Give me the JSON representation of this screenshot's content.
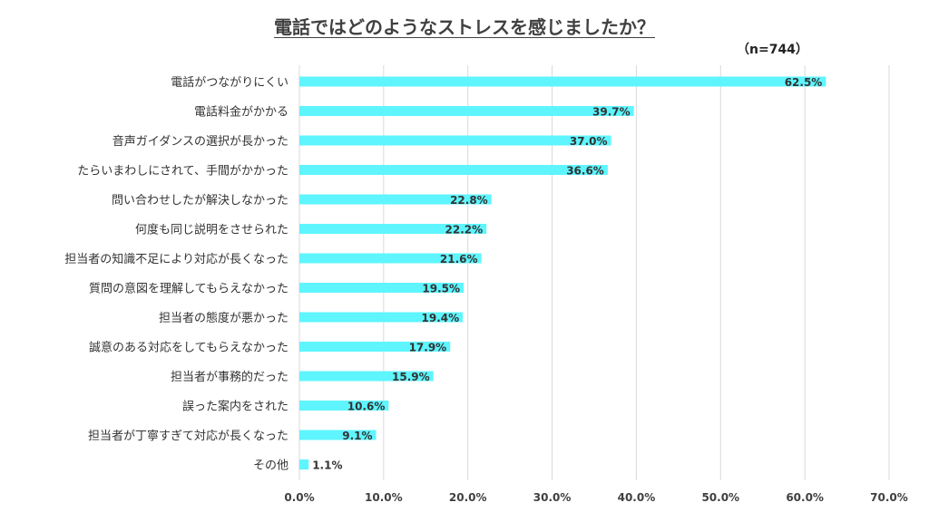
{
  "colors": {
    "bar": "#5ef5ff",
    "grid": "#d9d9d9",
    "text": "#333333",
    "label": "#404040"
  },
  "chart_data": {
    "type": "bar",
    "orientation": "horizontal",
    "title": "電話ではどのようなストレスを感じましたか？",
    "sample_label": "（n=744）",
    "categories": [
      "電話がつながりにくい",
      "電話料金がかかる",
      "音声ガイダンスの選択が長かった",
      "たらいまわしにされて、手間がかかった",
      "問い合わせしたが解決しなかった",
      "何度も同じ説明をさせられた",
      "担当者の知識不足により対応が長くなった",
      "質問の意図を理解してもらえなかった",
      "担当者の態度が悪かった",
      "誠意のある対応をしてもらえなかった",
      "担当者が事務的だった",
      "誤った案内をされた",
      "担当者が丁寧すぎて対応が長くなった",
      "その他"
    ],
    "values": [
      62.5,
      39.7,
      37.0,
      36.6,
      22.8,
      22.2,
      21.6,
      19.5,
      19.4,
      17.9,
      15.9,
      10.6,
      9.1,
      1.1
    ],
    "value_labels": [
      "62.5%",
      "39.7%",
      "37.0%",
      "36.6%",
      "22.8%",
      "22.2%",
      "21.6%",
      "19.5%",
      "19.4%",
      "17.9%",
      "15.9%",
      "10.6%",
      "9.1%",
      "1.1%"
    ],
    "xlim": [
      0,
      70
    ],
    "xticks": [
      0,
      10,
      20,
      30,
      40,
      50,
      60,
      70
    ],
    "xtick_labels": [
      "0.0%",
      "10.0%",
      "20.0%",
      "30.0%",
      "40.0%",
      "50.0%",
      "60.0%",
      "70.0%"
    ],
    "grid": true,
    "legend": "none"
  }
}
